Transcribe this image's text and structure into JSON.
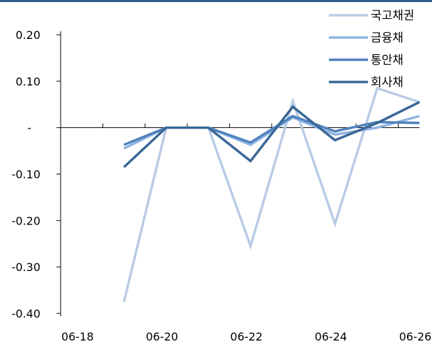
{
  "chart_data": {
    "type": "line",
    "categories": [
      "06-18",
      "06-19",
      "06-20",
      "06-21",
      "06-22",
      "06-23",
      "06-24",
      "06-25",
      "06-26"
    ],
    "x_tick_labels": [
      "06-18",
      "06-20",
      "06-22",
      "06-24",
      "06-26"
    ],
    "y_tick_labels": [
      "0.20",
      "0.10",
      "-",
      "-0.10",
      "-0.20",
      "-0.30",
      "-0.40"
    ],
    "ylim": [
      -0.4,
      0.2
    ],
    "grid": false,
    "legend_position": "top-right",
    "series": [
      {
        "name": "국고채권",
        "color": "#b8cce4",
        "values": [
          null,
          -0.375,
          0.0,
          0.0,
          -0.255,
          0.057,
          -0.207,
          0.085,
          0.055
        ]
      },
      {
        "name": "금융채",
        "color": "#8db3e2",
        "values": [
          null,
          -0.045,
          0.0,
          0.0,
          -0.037,
          0.022,
          -0.015,
          0.0,
          0.025
        ]
      },
      {
        "name": "통안채",
        "color": "#4f81bd",
        "values": [
          null,
          -0.037,
          0.0,
          0.0,
          -0.032,
          0.025,
          -0.008,
          0.012,
          0.01
        ]
      },
      {
        "name": "회사채",
        "color": "#3a6796",
        "values": [
          null,
          -0.085,
          0.0,
          0.0,
          -0.072,
          0.045,
          -0.027,
          0.01,
          0.055
        ]
      }
    ]
  }
}
